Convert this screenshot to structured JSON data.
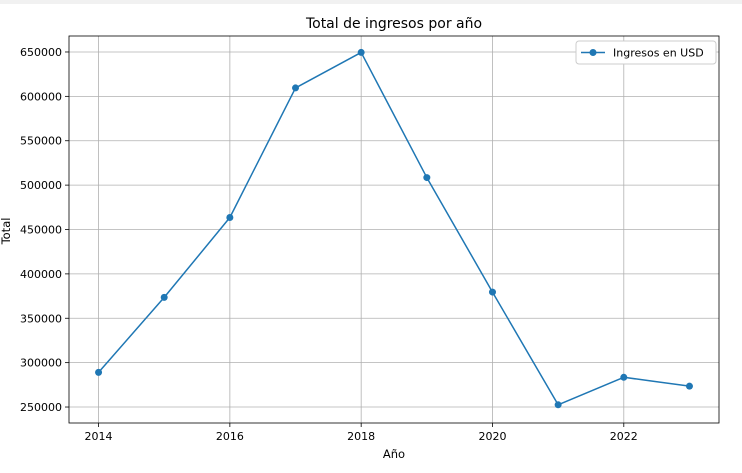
{
  "chart_data": {
    "type": "line",
    "title": "Total de ingresos por año",
    "xlabel": "Año",
    "ylabel": "Total",
    "x": [
      2014,
      2015,
      2016,
      2017,
      2018,
      2019,
      2020,
      2021,
      2022,
      2023
    ],
    "series": [
      {
        "name": "Ingresos en USD",
        "color": "#1f77b4",
        "marker": "circle",
        "values": [
          289000,
          373500,
          463500,
          609500,
          649500,
          508500,
          379500,
          252500,
          283500,
          273500
        ]
      }
    ],
    "xticks": [
      "2014",
      "2016",
      "2018",
      "2020",
      "2022"
    ],
    "yticks": [
      "250000",
      "300000",
      "350000",
      "400000",
      "450000",
      "500000",
      "550000",
      "600000",
      "650000"
    ],
    "xlim": [
      2013.55,
      2023.45
    ],
    "ylim": [
      232000,
      668000
    ],
    "grid": true,
    "legend_position": "top-right"
  }
}
